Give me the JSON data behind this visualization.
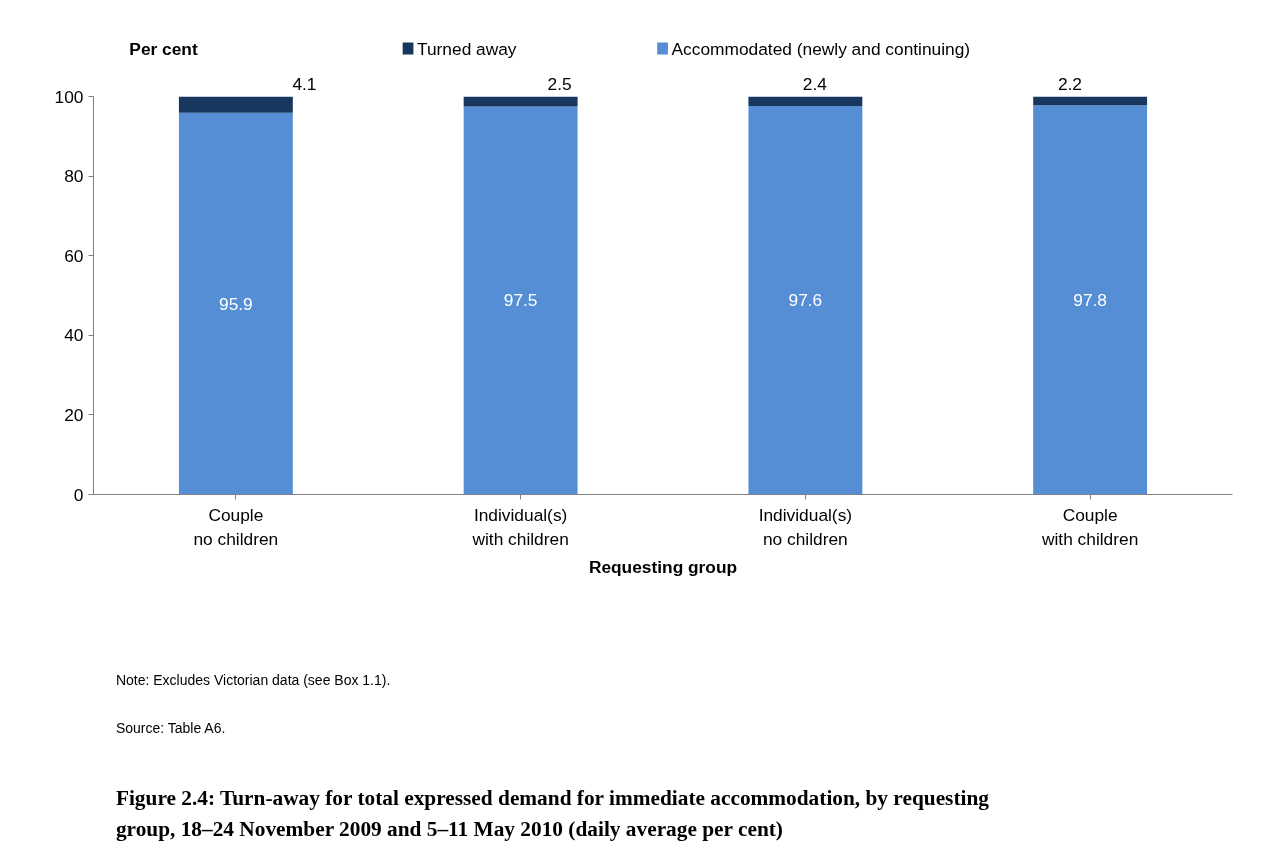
{
  "chart_data": {
    "type": "bar",
    "stacked": true,
    "title": "Figure 2.4: Turn-away for total expressed demand for immediate accommodation, by requesting group, 18–24 November 2009 and 5–11 May 2010 (daily average per cent)",
    "ylabel": "Per cent",
    "xlabel": "Requesting group",
    "categories": [
      "Couple\nno children",
      "Individual(s)\nwith children",
      "Individual(s)\nno children",
      "Couple\nwith children"
    ],
    "series": [
      {
        "name": "Accommodated (newly and continuing)",
        "color": "#558ed5",
        "values": [
          95.9,
          97.5,
          97.6,
          97.8
        ]
      },
      {
        "name": "Turned away",
        "color": "#17375e",
        "values": [
          4.1,
          2.5,
          2.4,
          2.2
        ]
      }
    ],
    "ylim": [
      0,
      100
    ],
    "yticks": [
      0,
      20,
      40,
      60,
      80,
      100
    ],
    "grid": false,
    "legend": "top",
    "data_labels": true,
    "annotations": [
      "Note: Excludes Victorian data (see Box 1.1).",
      "Source: Table A6."
    ]
  }
}
